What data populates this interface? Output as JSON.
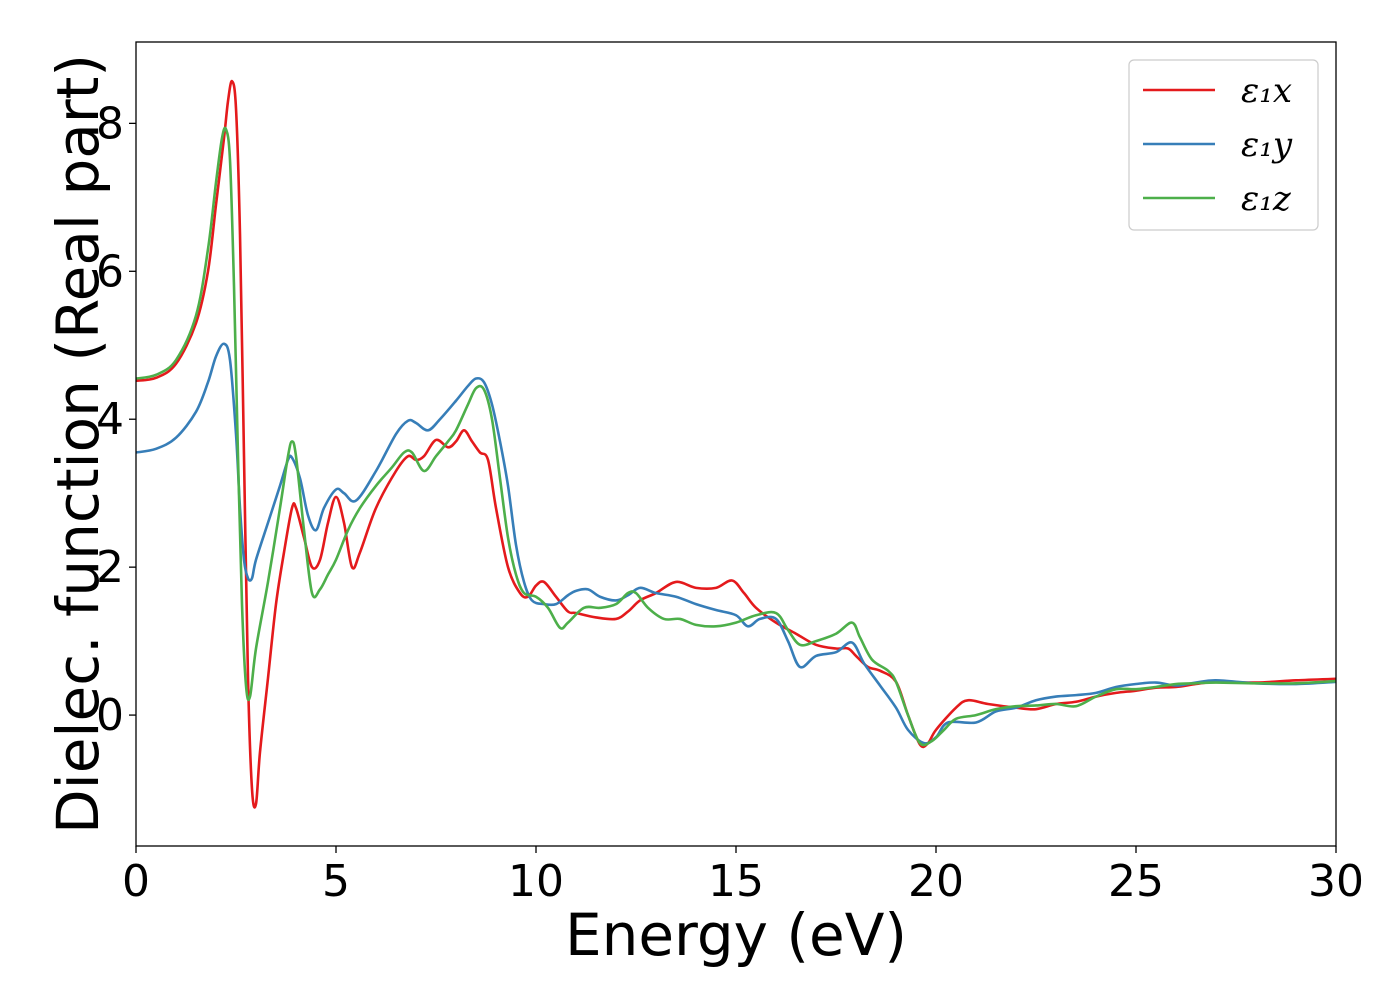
{
  "chart_data": {
    "type": "line",
    "xlabel": "Energy (eV)",
    "ylabel": "Dielec. function (Real part)",
    "xlim": [
      0,
      30
    ],
    "ylim": [
      -1.77,
      9.1
    ],
    "xticks": [
      0,
      5,
      10,
      15,
      20,
      25,
      30
    ],
    "yticks": [
      0,
      2,
      4,
      6,
      8
    ],
    "grid": false,
    "legend_position": "top-right",
    "series": [
      {
        "name": "ε₁x",
        "color": "#e41a1c",
        "points": [
          [
            0,
            4.52
          ],
          [
            0.5,
            4.56
          ],
          [
            1.0,
            4.75
          ],
          [
            1.5,
            5.3
          ],
          [
            1.8,
            6.0
          ],
          [
            2.0,
            6.9
          ],
          [
            2.2,
            7.8
          ],
          [
            2.3,
            8.3
          ],
          [
            2.4,
            8.57
          ],
          [
            2.5,
            8.2
          ],
          [
            2.6,
            6.5
          ],
          [
            2.7,
            3.5
          ],
          [
            2.8,
            0.5
          ],
          [
            2.9,
            -1.0
          ],
          [
            3.0,
            -1.2
          ],
          [
            3.1,
            -0.5
          ],
          [
            3.3,
            0.5
          ],
          [
            3.5,
            1.5
          ],
          [
            3.7,
            2.2
          ],
          [
            3.9,
            2.8
          ],
          [
            4.0,
            2.8
          ],
          [
            4.2,
            2.4
          ],
          [
            4.4,
            2.0
          ],
          [
            4.6,
            2.1
          ],
          [
            4.8,
            2.6
          ],
          [
            5.0,
            2.95
          ],
          [
            5.2,
            2.6
          ],
          [
            5.4,
            2.0
          ],
          [
            5.6,
            2.2
          ],
          [
            6.0,
            2.8
          ],
          [
            6.5,
            3.3
          ],
          [
            6.8,
            3.5
          ],
          [
            7.0,
            3.45
          ],
          [
            7.2,
            3.5
          ],
          [
            7.5,
            3.72
          ],
          [
            7.8,
            3.62
          ],
          [
            8.0,
            3.7
          ],
          [
            8.2,
            3.85
          ],
          [
            8.4,
            3.7
          ],
          [
            8.6,
            3.55
          ],
          [
            8.8,
            3.45
          ],
          [
            9.0,
            2.8
          ],
          [
            9.3,
            2.0
          ],
          [
            9.6,
            1.65
          ],
          [
            9.8,
            1.6
          ],
          [
            10.0,
            1.75
          ],
          [
            10.2,
            1.8
          ],
          [
            10.5,
            1.6
          ],
          [
            10.8,
            1.4
          ],
          [
            11.0,
            1.38
          ],
          [
            11.5,
            1.32
          ],
          [
            12.0,
            1.3
          ],
          [
            12.3,
            1.4
          ],
          [
            12.6,
            1.55
          ],
          [
            13.0,
            1.65
          ],
          [
            13.5,
            1.8
          ],
          [
            14.0,
            1.72
          ],
          [
            14.5,
            1.72
          ],
          [
            14.9,
            1.82
          ],
          [
            15.2,
            1.65
          ],
          [
            15.5,
            1.45
          ],
          [
            16.0,
            1.25
          ],
          [
            16.5,
            1.1
          ],
          [
            17.0,
            0.95
          ],
          [
            17.5,
            0.9
          ],
          [
            17.8,
            0.9
          ],
          [
            18.0,
            0.8
          ],
          [
            18.3,
            0.65
          ],
          [
            18.6,
            0.6
          ],
          [
            19.0,
            0.45
          ],
          [
            19.3,
            0.0
          ],
          [
            19.6,
            -0.4
          ],
          [
            19.8,
            -0.38
          ],
          [
            20.0,
            -0.2
          ],
          [
            20.5,
            0.1
          ],
          [
            20.8,
            0.2
          ],
          [
            21.3,
            0.15
          ],
          [
            22.0,
            0.1
          ],
          [
            22.5,
            0.08
          ],
          [
            23.0,
            0.15
          ],
          [
            23.5,
            0.18
          ],
          [
            24.0,
            0.25
          ],
          [
            24.5,
            0.3
          ],
          [
            25.0,
            0.33
          ],
          [
            25.5,
            0.37
          ],
          [
            26.0,
            0.38
          ],
          [
            26.5,
            0.42
          ],
          [
            27.0,
            0.45
          ],
          [
            28.0,
            0.44
          ],
          [
            29.0,
            0.47
          ],
          [
            30.0,
            0.49
          ]
        ]
      },
      {
        "name": "ε₁y",
        "color": "#377eb8",
        "points": [
          [
            0,
            3.55
          ],
          [
            0.5,
            3.6
          ],
          [
            1.0,
            3.75
          ],
          [
            1.5,
            4.1
          ],
          [
            1.8,
            4.5
          ],
          [
            2.0,
            4.85
          ],
          [
            2.2,
            5.02
          ],
          [
            2.35,
            4.8
          ],
          [
            2.5,
            3.8
          ],
          [
            2.6,
            2.8
          ],
          [
            2.7,
            2.1
          ],
          [
            2.8,
            1.85
          ],
          [
            2.9,
            1.85
          ],
          [
            3.0,
            2.1
          ],
          [
            3.3,
            2.6
          ],
          [
            3.6,
            3.1
          ],
          [
            3.8,
            3.45
          ],
          [
            3.9,
            3.48
          ],
          [
            4.1,
            3.2
          ],
          [
            4.3,
            2.7
          ],
          [
            4.5,
            2.5
          ],
          [
            4.7,
            2.8
          ],
          [
            5.0,
            3.05
          ],
          [
            5.2,
            3.0
          ],
          [
            5.5,
            2.9
          ],
          [
            6.0,
            3.3
          ],
          [
            6.5,
            3.8
          ],
          [
            6.8,
            3.98
          ],
          [
            7.0,
            3.95
          ],
          [
            7.3,
            3.85
          ],
          [
            7.6,
            4.0
          ],
          [
            8.0,
            4.25
          ],
          [
            8.3,
            4.45
          ],
          [
            8.5,
            4.55
          ],
          [
            8.7,
            4.5
          ],
          [
            8.9,
            4.2
          ],
          [
            9.1,
            3.7
          ],
          [
            9.3,
            3.1
          ],
          [
            9.5,
            2.3
          ],
          [
            9.7,
            1.8
          ],
          [
            9.9,
            1.55
          ],
          [
            10.2,
            1.5
          ],
          [
            10.5,
            1.5
          ],
          [
            10.8,
            1.62
          ],
          [
            11.0,
            1.68
          ],
          [
            11.3,
            1.7
          ],
          [
            11.6,
            1.6
          ],
          [
            12.0,
            1.55
          ],
          [
            12.3,
            1.62
          ],
          [
            12.6,
            1.72
          ],
          [
            13.0,
            1.65
          ],
          [
            13.5,
            1.6
          ],
          [
            14.0,
            1.5
          ],
          [
            14.5,
            1.42
          ],
          [
            15.0,
            1.35
          ],
          [
            15.3,
            1.2
          ],
          [
            15.6,
            1.3
          ],
          [
            16.0,
            1.3
          ],
          [
            16.3,
            1.0
          ],
          [
            16.6,
            0.65
          ],
          [
            17.0,
            0.8
          ],
          [
            17.5,
            0.85
          ],
          [
            17.9,
            0.98
          ],
          [
            18.2,
            0.7
          ],
          [
            18.6,
            0.4
          ],
          [
            19.0,
            0.1
          ],
          [
            19.3,
            -0.2
          ],
          [
            19.7,
            -0.38
          ],
          [
            20.0,
            -0.3
          ],
          [
            20.3,
            -0.1
          ],
          [
            21.0,
            -0.1
          ],
          [
            21.5,
            0.05
          ],
          [
            22.0,
            0.1
          ],
          [
            22.5,
            0.2
          ],
          [
            23.0,
            0.25
          ],
          [
            23.5,
            0.27
          ],
          [
            24.0,
            0.3
          ],
          [
            24.5,
            0.38
          ],
          [
            25.0,
            0.42
          ],
          [
            25.5,
            0.44
          ],
          [
            26.0,
            0.4
          ],
          [
            26.5,
            0.44
          ],
          [
            27.0,
            0.47
          ],
          [
            28.0,
            0.43
          ],
          [
            29.0,
            0.42
          ],
          [
            30.0,
            0.45
          ]
        ]
      },
      {
        "name": "ε₁z",
        "color": "#4daf4a",
        "points": [
          [
            0,
            4.55
          ],
          [
            0.5,
            4.6
          ],
          [
            1.0,
            4.8
          ],
          [
            1.5,
            5.4
          ],
          [
            1.8,
            6.3
          ],
          [
            2.0,
            7.2
          ],
          [
            2.15,
            7.8
          ],
          [
            2.25,
            7.92
          ],
          [
            2.35,
            7.5
          ],
          [
            2.45,
            5.8
          ],
          [
            2.55,
            3.5
          ],
          [
            2.65,
            1.5
          ],
          [
            2.75,
            0.4
          ],
          [
            2.85,
            0.25
          ],
          [
            3.0,
            0.9
          ],
          [
            3.3,
            1.8
          ],
          [
            3.6,
            2.8
          ],
          [
            3.8,
            3.5
          ],
          [
            3.9,
            3.7
          ],
          [
            4.0,
            3.5
          ],
          [
            4.2,
            2.5
          ],
          [
            4.4,
            1.65
          ],
          [
            4.6,
            1.7
          ],
          [
            4.8,
            1.9
          ],
          [
            5.0,
            2.1
          ],
          [
            5.3,
            2.5
          ],
          [
            5.6,
            2.8
          ],
          [
            6.0,
            3.1
          ],
          [
            6.4,
            3.35
          ],
          [
            6.7,
            3.55
          ],
          [
            6.9,
            3.55
          ],
          [
            7.2,
            3.3
          ],
          [
            7.5,
            3.5
          ],
          [
            7.8,
            3.7
          ],
          [
            8.0,
            3.85
          ],
          [
            8.3,
            4.2
          ],
          [
            8.5,
            4.42
          ],
          [
            8.7,
            4.4
          ],
          [
            8.9,
            4.0
          ],
          [
            9.1,
            3.2
          ],
          [
            9.3,
            2.4
          ],
          [
            9.5,
            1.9
          ],
          [
            9.7,
            1.65
          ],
          [
            10.0,
            1.6
          ],
          [
            10.3,
            1.45
          ],
          [
            10.6,
            1.18
          ],
          [
            10.8,
            1.25
          ],
          [
            11.2,
            1.45
          ],
          [
            11.6,
            1.45
          ],
          [
            12.0,
            1.5
          ],
          [
            12.3,
            1.65
          ],
          [
            12.5,
            1.65
          ],
          [
            12.8,
            1.45
          ],
          [
            13.2,
            1.3
          ],
          [
            13.6,
            1.3
          ],
          [
            14.0,
            1.22
          ],
          [
            14.5,
            1.2
          ],
          [
            15.0,
            1.25
          ],
          [
            15.5,
            1.35
          ],
          [
            16.0,
            1.38
          ],
          [
            16.3,
            1.15
          ],
          [
            16.6,
            0.95
          ],
          [
            17.0,
            1.0
          ],
          [
            17.5,
            1.1
          ],
          [
            17.9,
            1.25
          ],
          [
            18.1,
            1.05
          ],
          [
            18.4,
            0.75
          ],
          [
            18.8,
            0.6
          ],
          [
            19.0,
            0.45
          ],
          [
            19.3,
            0.0
          ],
          [
            19.6,
            -0.38
          ],
          [
            19.9,
            -0.35
          ],
          [
            20.2,
            -0.2
          ],
          [
            20.5,
            -0.05
          ],
          [
            21.0,
            0.0
          ],
          [
            21.5,
            0.08
          ],
          [
            22.0,
            0.12
          ],
          [
            22.5,
            0.13
          ],
          [
            23.0,
            0.15
          ],
          [
            23.5,
            0.12
          ],
          [
            24.0,
            0.25
          ],
          [
            24.5,
            0.35
          ],
          [
            25.0,
            0.35
          ],
          [
            25.5,
            0.38
          ],
          [
            26.0,
            0.42
          ],
          [
            26.5,
            0.43
          ],
          [
            27.0,
            0.44
          ],
          [
            28.0,
            0.43
          ],
          [
            29.0,
            0.43
          ],
          [
            30.0,
            0.46
          ]
        ]
      }
    ]
  }
}
